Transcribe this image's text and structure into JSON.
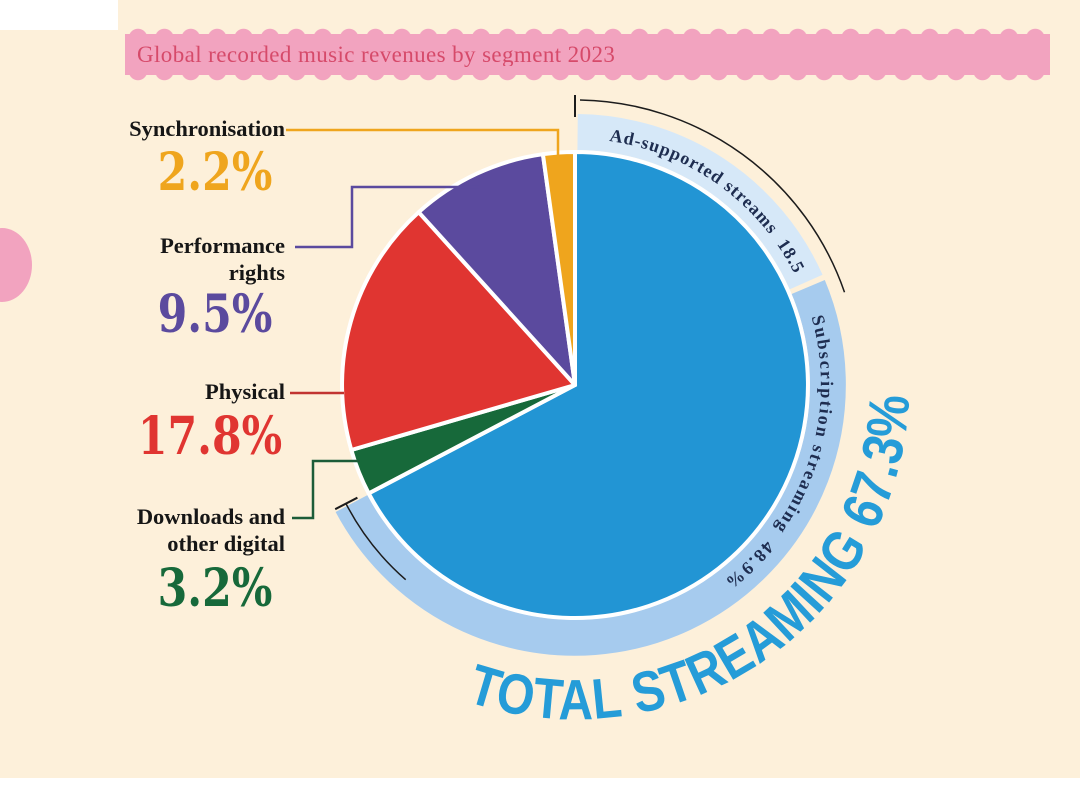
{
  "header": {
    "title": "Global recorded music revenues by segment 2023"
  },
  "colors": {
    "background": "#fdf0da",
    "banner": "#f2a3bf",
    "banner_text": "#d64a6a",
    "streaming_blue": "#2295d4",
    "ad_band": "#d6e8f8",
    "subscription_band": "#a6cbee",
    "physical_red": "#e03531",
    "performance_purple": "#5b4a9e",
    "downloads_green": "#17693a",
    "sync_orange": "#efa51d",
    "arc_label_navy": "#1e2d50",
    "total_text_blue": "#259cd8"
  },
  "labels": [
    {
      "name": "Synchronisation",
      "pct": "2.2%",
      "color": "#efa51d"
    },
    {
      "name": "Performance rights",
      "pct": "9.5%",
      "color": "#5b4a9e"
    },
    {
      "name": "Physical",
      "pct": "17.8%",
      "color": "#e03531"
    },
    {
      "name": "Downloads and other digital",
      "pct": "3.2%",
      "color": "#17693a"
    }
  ],
  "chart_data": {
    "type": "pie",
    "title": "Global recorded music revenues by segment 2023",
    "slices": [
      {
        "label": "Total streaming",
        "value": 67.3,
        "color": "#2295d4"
      },
      {
        "label": "Downloads and other digital",
        "value": 3.2,
        "color": "#17693a"
      },
      {
        "label": "Physical",
        "value": 17.8,
        "color": "#e03531"
      },
      {
        "label": "Performance rights",
        "value": 9.5,
        "color": "#5b4a9e"
      },
      {
        "label": "Synchronisation",
        "value": 2.2,
        "color": "#efa51d"
      }
    ],
    "streaming_breakdown": [
      {
        "label": "Ad-supported streams",
        "value": 18.5,
        "color": "#d6e8f8",
        "arc_text": "Ad-supported streams  18.5%"
      },
      {
        "label": "Subscription streaming",
        "value": 48.9,
        "color": "#a6cbee",
        "arc_text": "Subscription streaming  48.9%"
      }
    ],
    "total_streaming_label": "TOTAL STREAMING 67.3%"
  }
}
